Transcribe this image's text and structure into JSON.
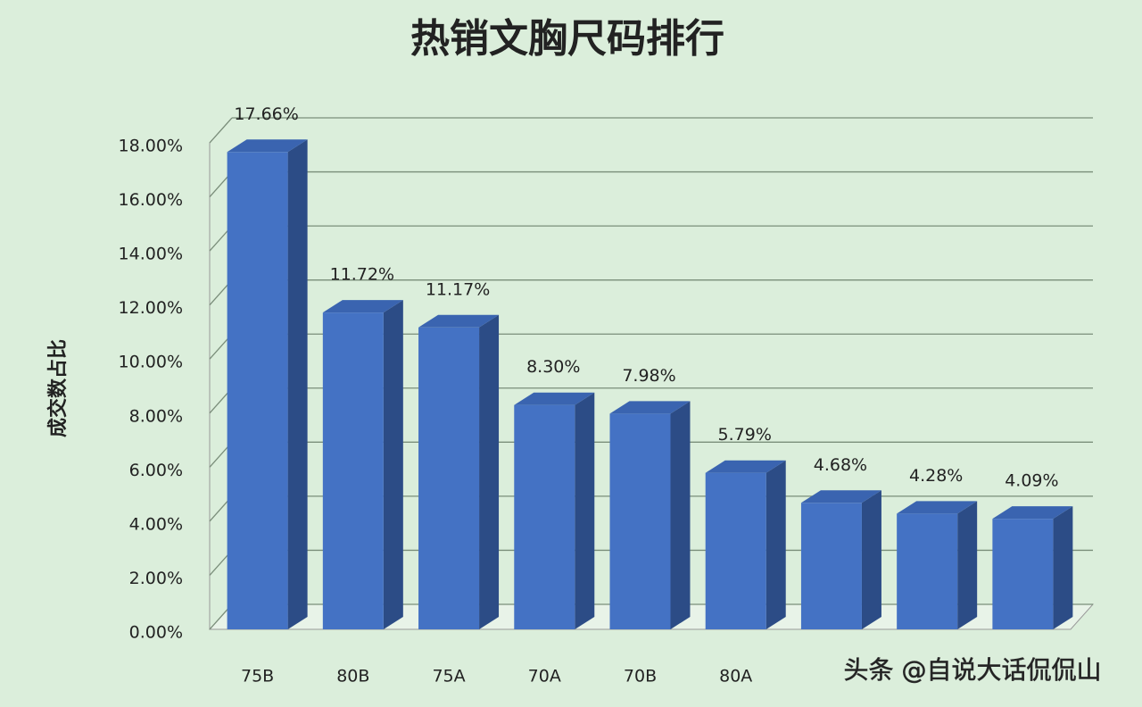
{
  "chart_data": {
    "type": "bar3d",
    "title": "热销文胸尺码排行",
    "y_label": "成交数占比",
    "categories": [
      "75B",
      "80B",
      "75A",
      "70A",
      "70B",
      "80A",
      null,
      null,
      null
    ],
    "values": [
      17.66,
      11.72,
      11.17,
      8.3,
      7.98,
      5.79,
      4.68,
      4.28,
      4.09
    ],
    "value_labels": [
      "17.66%",
      "11.72%",
      "11.17%",
      "8.30%",
      "7.98%",
      "5.79%",
      "4.68%",
      "4.28%",
      "4.09%"
    ],
    "color": "#4472c4",
    "ylim": [
      0,
      18
    ],
    "yticks": [
      {
        "value": 0,
        "label": "0.00%"
      },
      {
        "value": 2,
        "label": "2.00%"
      },
      {
        "value": 4,
        "label": "4.00%"
      },
      {
        "value": 6,
        "label": "6.00%"
      },
      {
        "value": 8,
        "label": "8.00%"
      },
      {
        "value": 10,
        "label": "10.00%"
      },
      {
        "value": 12,
        "label": "12.00%"
      },
      {
        "value": 14,
        "label": "14.00%"
      },
      {
        "value": 16,
        "label": "16.00%"
      },
      {
        "value": 18,
        "label": "18.00%"
      }
    ],
    "grid": true,
    "watermark": "头条 @自说大话侃侃山"
  }
}
